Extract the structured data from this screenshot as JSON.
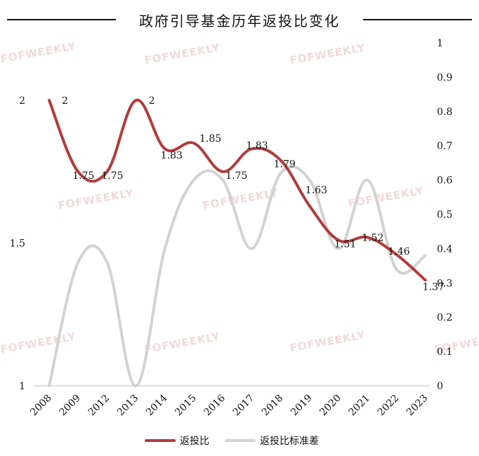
{
  "title": "政府引导基金历年返投比变化",
  "watermark_text": "FOFWEEKLY",
  "colors": {
    "series1": "#b23b3b",
    "series2": "#d2d2d2"
  },
  "chart_data": {
    "type": "line",
    "title": "政府引导基金历年返投比变化",
    "categories": [
      "2008",
      "2009",
      "2012",
      "2013",
      "2014",
      "2015",
      "2016",
      "2017",
      "2018",
      "2019",
      "2020",
      "2021",
      "2022",
      "2023"
    ],
    "y_left": {
      "min": 1,
      "max": 2,
      "ticks": [
        "1",
        "1.5",
        "2"
      ]
    },
    "y_right": {
      "min": 0,
      "max": 1,
      "ticks": [
        "0",
        "0.1",
        "0.2",
        "0.3",
        "0.4",
        "0.5",
        "0.6",
        "0.7",
        "0.8",
        "0.9",
        "1"
      ]
    },
    "legend_position": "bottom",
    "grid": false,
    "series": [
      {
        "name": "返投比",
        "axis": "left",
        "values": [
          2,
          1.75,
          1.75,
          2,
          1.83,
          1.85,
          1.75,
          1.83,
          1.79,
          1.63,
          1.51,
          1.52,
          1.46,
          1.37
        ],
        "labels": [
          "2",
          "1.75",
          "1.75",
          "2",
          "1.83",
          "1.85",
          "1.75",
          "1.83",
          "1.79",
          "1.63",
          "1.51",
          "1.52",
          "1.46",
          "1.37"
        ]
      },
      {
        "name": "返投比标准差",
        "axis": "right",
        "values": [
          0,
          0.36,
          0.36,
          0,
          0.4,
          0.6,
          0.6,
          0.4,
          0.62,
          0.6,
          0.4,
          0.6,
          0.34,
          0.38
        ]
      }
    ]
  }
}
